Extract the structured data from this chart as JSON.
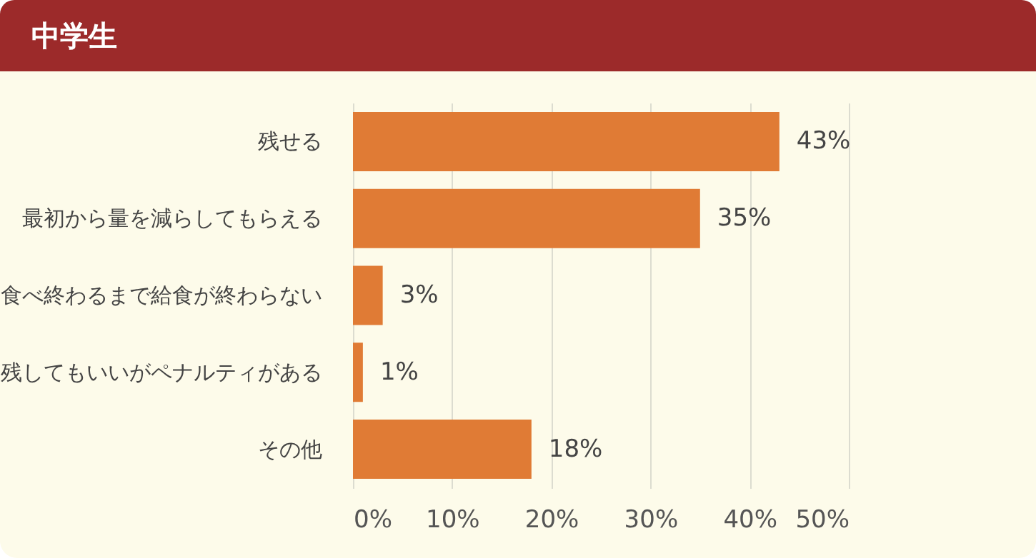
{
  "chart_data": {
    "type": "bar",
    "title": "中学生",
    "orientation": "horizontal",
    "categories": [
      "残せる",
      "最初から量を減らしてもらえる",
      "食べ終わるまで給食が終わらない",
      "残してもいいがペナルティがある",
      "その他"
    ],
    "values": [
      43,
      35,
      3,
      1,
      18
    ],
    "value_labels": [
      "43%",
      "35%",
      "3%",
      "1%",
      "18%"
    ],
    "color": "#e07b35",
    "xlim": [
      0,
      50
    ],
    "xticks": [
      {
        "value": 0,
        "label": "0%"
      },
      {
        "value": 10,
        "label": "10%"
      },
      {
        "value": 20,
        "label": "20%"
      },
      {
        "value": 30,
        "label": "30%"
      },
      {
        "value": 40,
        "label": "40%"
      },
      {
        "value": 50,
        "label": "50%"
      }
    ],
    "grid": "x"
  }
}
